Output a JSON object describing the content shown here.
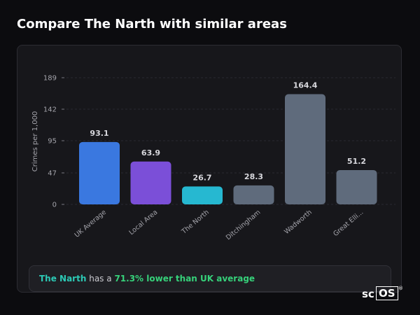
{
  "page": {
    "title": "Compare The Narth with similar areas"
  },
  "chart_data": {
    "type": "bar",
    "ylabel": "Crimes per 1,000",
    "yticks": [
      0,
      47,
      95,
      142,
      189
    ],
    "ylim": [
      0,
      189
    ],
    "grid": true,
    "categories": [
      "UK Average",
      "Local Area",
      "The North",
      "Ditchingham",
      "Wadworth",
      "Great Elli..."
    ],
    "values": [
      93.1,
      63.9,
      26.7,
      28.3,
      164.4,
      51.2
    ],
    "value_labels": [
      "93.1",
      "63.9",
      "26.7",
      "28.3",
      "164.4",
      "51.2"
    ],
    "colors": [
      "#3a78e0",
      "#7b4fd8",
      "#26b8d1",
      "#5f6b7c",
      "#5f6b7c",
      "#5f6b7c"
    ]
  },
  "summary": {
    "area": "The Narth",
    "middle": "has a",
    "highlight": "71.3% lower than UK average"
  },
  "brand": {
    "prefix": "sc",
    "boxed": "OS",
    "mark": "®"
  }
}
